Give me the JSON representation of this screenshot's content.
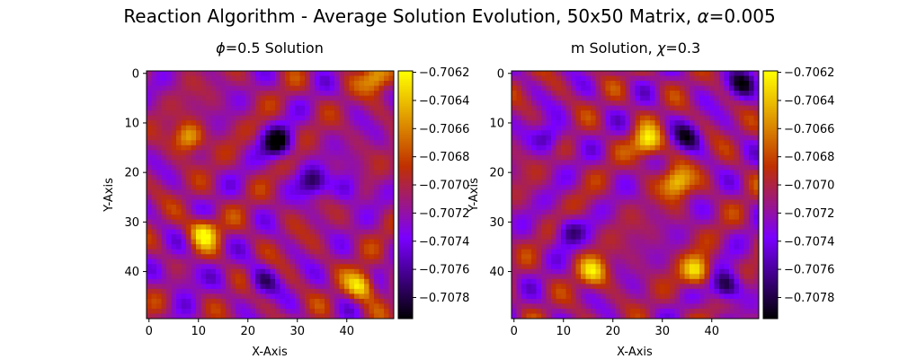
{
  "figure": {
    "title_prefix": "Reaction Algorithm - Average Solution Evolution, 50x50 Matrix, ",
    "title_symbol": "α",
    "title_suffix": "=0.005"
  },
  "colors": {
    "colormap": "gnuplot",
    "stops": [
      "#000000",
      "#7a00ff",
      "#c03000",
      "#ffff00"
    ]
  },
  "chart_data": [
    {
      "type": "heatmap",
      "title_symbol": "ϕ",
      "title": "=0.5 Solution",
      "xlabel": "X-Axis",
      "ylabel": "Y-Axis",
      "grid_size": [
        50,
        50
      ],
      "xlim": [
        0,
        49
      ],
      "ylim": [
        49,
        0
      ],
      "x_ticks": [
        0,
        10,
        20,
        30,
        40
      ],
      "y_ticks": [
        0,
        10,
        20,
        30,
        40
      ],
      "value_range": [
        -0.70795,
        -0.70619
      ],
      "colorbar_ticks": [
        "−0.7062",
        "−0.7064",
        "−0.7066",
        "−0.7068",
        "−0.7070",
        "−0.7072",
        "−0.7074",
        "−0.7076",
        "−0.7078"
      ],
      "colorbar_tick_values": [
        -0.7062,
        -0.7064,
        -0.7066,
        -0.7068,
        -0.707,
        -0.7072,
        -0.7074,
        -0.7076,
        -0.7078
      ],
      "features": [
        {
          "x": 26,
          "y": 14,
          "value": -0.70795
        },
        {
          "x": 33,
          "y": 22,
          "value": -0.7077
        },
        {
          "x": 23,
          "y": 42,
          "value": -0.7076
        },
        {
          "x": 7,
          "y": 41,
          "value": -0.7075
        },
        {
          "x": 40,
          "y": 23,
          "value": -0.7075
        },
        {
          "x": 43,
          "y": 43,
          "value": -0.70625
        },
        {
          "x": 11,
          "y": 32,
          "value": -0.7063
        },
        {
          "x": 8,
          "y": 13,
          "value": -0.7064
        },
        {
          "x": 46,
          "y": 1,
          "value": -0.7064
        }
      ]
    },
    {
      "type": "heatmap",
      "title": "m Solution, ",
      "title_symbol": "χ",
      "title_suffix": "=0.3",
      "xlabel": "X-Axis",
      "ylabel": "Y-Axis",
      "grid_size": [
        50,
        50
      ],
      "xlim": [
        0,
        49
      ],
      "ylim": [
        49,
        0
      ],
      "x_ticks": [
        0,
        10,
        20,
        30,
        40
      ],
      "y_ticks": [
        0,
        10,
        20,
        30,
        40
      ],
      "value_range": [
        -0.70795,
        -0.70619
      ],
      "colorbar_ticks": [
        "−0.7062",
        "−0.7064",
        "−0.7066",
        "−0.7068",
        "−0.7070",
        "−0.7072",
        "−0.7074",
        "−0.7076",
        "−0.7078"
      ],
      "colorbar_tick_values": [
        -0.7062,
        -0.7064,
        -0.7066,
        -0.7068,
        -0.707,
        -0.7072,
        -0.7074,
        -0.7076,
        -0.7078
      ],
      "features": [
        {
          "x": 43,
          "y": 43,
          "value": -0.70795
        },
        {
          "x": 46,
          "y": 2,
          "value": -0.7078
        },
        {
          "x": 35,
          "y": 13,
          "value": -0.7077
        },
        {
          "x": 11,
          "y": 32,
          "value": -0.7076
        },
        {
          "x": 7,
          "y": 13,
          "value": -0.7076
        },
        {
          "x": 27,
          "y": 14,
          "value": -0.70625
        },
        {
          "x": 33,
          "y": 22,
          "value": -0.7063
        },
        {
          "x": 37,
          "y": 40,
          "value": -0.7063
        },
        {
          "x": 16,
          "y": 40,
          "value": -0.7064
        }
      ]
    }
  ]
}
